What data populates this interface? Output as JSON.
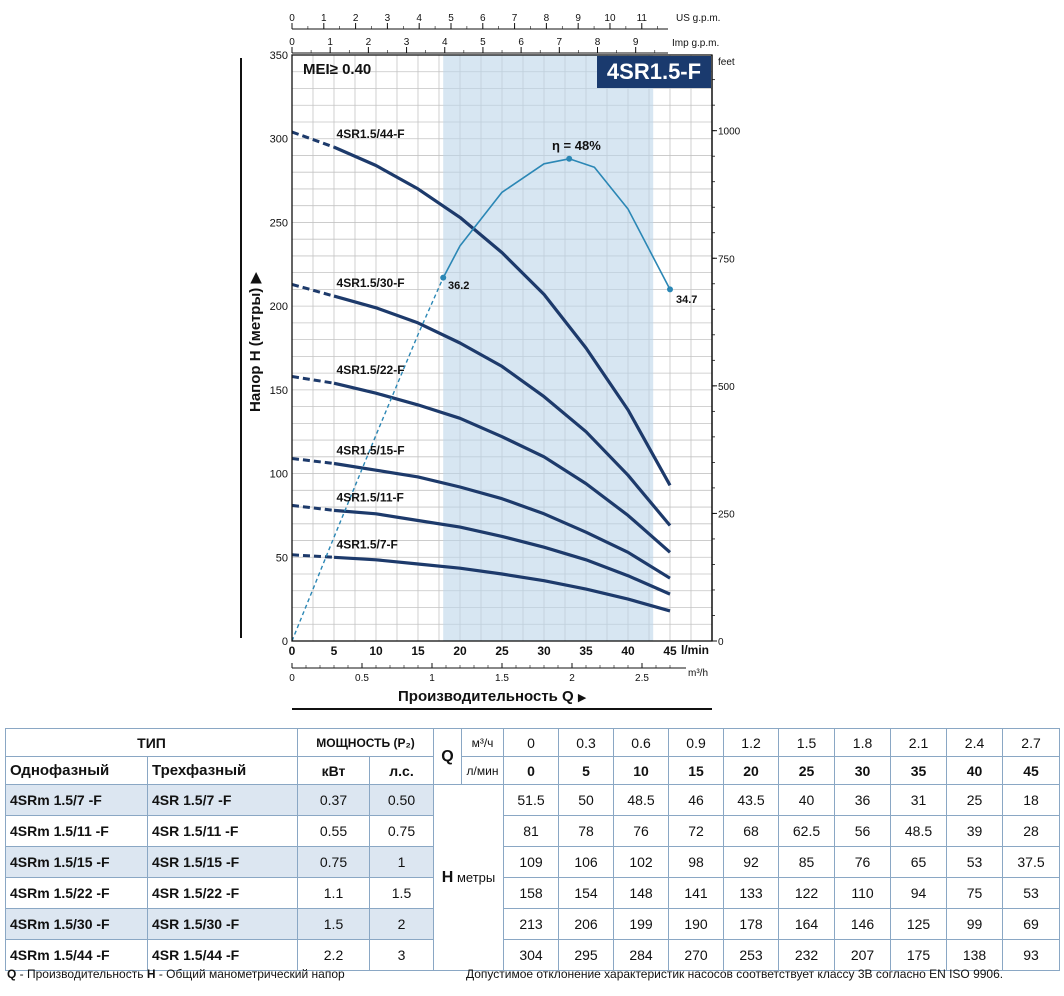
{
  "chart_data": {
    "type": "line",
    "model_title": "4SR1.5-F",
    "mei_label": "MEI≥ 0.40",
    "ylabel": "Напор H (метры)",
    "xlabel": "Производительность Q",
    "x_unit_lmin": "l/min",
    "x_unit_m3h": "m³/h",
    "x_unit_us": "US g.p.m.",
    "x_unit_imp": "Imp g.p.m.",
    "y_unit_feet": "feet",
    "xlim_lmin": [
      0,
      50
    ],
    "ylim_m": [
      0,
      350
    ],
    "x_ticks_lmin": [
      0,
      5,
      10,
      15,
      20,
      25,
      30,
      35,
      40,
      45
    ],
    "y_ticks_m": [
      0,
      50,
      100,
      150,
      200,
      250,
      300,
      350
    ],
    "x_ticks_m3h": [
      0,
      0.5,
      1,
      1.5,
      2,
      2.5
    ],
    "x_ticks_us": [
      0,
      1,
      2,
      3,
      4,
      5,
      6,
      7,
      8,
      9,
      10,
      11
    ],
    "x_ticks_imp": [
      0,
      1,
      2,
      3,
      4,
      5,
      6,
      7,
      8,
      9
    ],
    "y_ticks_feet": [
      0,
      250,
      500,
      750,
      1000
    ],
    "preferred_range_lmin": [
      18,
      43
    ],
    "grid": true,
    "series": [
      {
        "name": "4SR1.5/7-F",
        "x": [
          0,
          5,
          10,
          15,
          20,
          25,
          30,
          35,
          40,
          45
        ],
        "values": [
          51.5,
          50,
          48.5,
          46,
          43.5,
          40,
          36,
          31,
          25,
          18
        ]
      },
      {
        "name": "4SR1.5/11-F",
        "x": [
          0,
          5,
          10,
          15,
          20,
          25,
          30,
          35,
          40,
          45
        ],
        "values": [
          81,
          78,
          76,
          72,
          68,
          62.5,
          56,
          48.5,
          39,
          28
        ]
      },
      {
        "name": "4SR1.5/15-F",
        "x": [
          0,
          5,
          10,
          15,
          20,
          25,
          30,
          35,
          40,
          45
        ],
        "values": [
          109,
          106,
          102,
          98,
          92,
          85,
          76,
          65,
          53,
          37.5
        ]
      },
      {
        "name": "4SR1.5/22-F",
        "x": [
          0,
          5,
          10,
          15,
          20,
          25,
          30,
          35,
          40,
          45
        ],
        "values": [
          158,
          154,
          148,
          141,
          133,
          122,
          110,
          94,
          75,
          53
        ]
      },
      {
        "name": "4SR1.5/30-F",
        "x": [
          0,
          5,
          10,
          15,
          20,
          25,
          30,
          35,
          40,
          45
        ],
        "values": [
          213,
          206,
          199,
          190,
          178,
          164,
          146,
          125,
          99,
          69
        ]
      },
      {
        "name": "4SR1.5/44-F",
        "x": [
          0,
          5,
          10,
          15,
          20,
          25,
          30,
          35,
          40,
          45
        ],
        "values": [
          304,
          295,
          284,
          270,
          253,
          232,
          207,
          175,
          138,
          93
        ]
      }
    ],
    "efficiency": {
      "label": "η = 48%",
      "start_label": "36.2",
      "end_label": "34.7",
      "x": [
        0,
        5,
        10,
        15,
        18,
        20,
        25,
        30,
        33,
        36,
        40,
        45
      ],
      "y": [
        0,
        62,
        123,
        183,
        217,
        236,
        268,
        285,
        288,
        283,
        258,
        210
      ]
    }
  },
  "table": {
    "header_type": "ТИП",
    "header_single": "Однофазный",
    "header_three": "Трехфазный",
    "header_power": "МОЩНОСТЬ (P₂)",
    "header_kw": "кВт",
    "header_hp": "л.с.",
    "q_label": "Q",
    "q_unit_m3h": "м³/ч",
    "q_unit_lmin": "л/мин",
    "q_m3h": [
      "0",
      "0.3",
      "0.6",
      "0.9",
      "1.2",
      "1.5",
      "1.8",
      "2.1",
      "2.4",
      "2.7"
    ],
    "q_lmin": [
      "0",
      "5",
      "10",
      "15",
      "20",
      "25",
      "30",
      "35",
      "40",
      "45"
    ],
    "h_label": "H",
    "h_unit": "метры",
    "rows": [
      {
        "single": "4SRm 1.5/7   -F",
        "three": "4SR 1.5/7   -F",
        "kw": "0.37",
        "hp": "0.50",
        "h": [
          "51.5",
          "50",
          "48.5",
          "46",
          "43.5",
          "40",
          "36",
          "31",
          "25",
          "18"
        ]
      },
      {
        "single": "4SRm 1.5/11 -F",
        "three": "4SR 1.5/11 -F",
        "kw": "0.55",
        "hp": "0.75",
        "h": [
          "81",
          "78",
          "76",
          "72",
          "68",
          "62.5",
          "56",
          "48.5",
          "39",
          "28"
        ]
      },
      {
        "single": "4SRm 1.5/15 -F",
        "three": "4SR 1.5/15 -F",
        "kw": "0.75",
        "hp": "1",
        "h": [
          "109",
          "106",
          "102",
          "98",
          "92",
          "85",
          "76",
          "65",
          "53",
          "37.5"
        ]
      },
      {
        "single": "4SRm 1.5/22 -F",
        "three": "4SR 1.5/22 -F",
        "kw": "1.1",
        "hp": "1.5",
        "h": [
          "158",
          "154",
          "148",
          "141",
          "133",
          "122",
          "110",
          "94",
          "75",
          "53"
        ]
      },
      {
        "single": "4SRm 1.5/30 -F",
        "three": "4SR 1.5/30 -F",
        "kw": "1.5",
        "hp": "2",
        "h": [
          "213",
          "206",
          "199",
          "190",
          "178",
          "164",
          "146",
          "125",
          "99",
          "69"
        ]
      },
      {
        "single": "4SRm 1.5/44 -F",
        "three": "4SR 1.5/44 -F",
        "kw": "2.2",
        "hp": "3",
        "h": [
          "304",
          "295",
          "284",
          "270",
          "253",
          "232",
          "207",
          "175",
          "138",
          "93"
        ]
      }
    ]
  },
  "footer": {
    "left_q": "Q",
    "left_q_text": " - Производительность  ",
    "left_h": "H",
    "left_h_text": " - Общий манометрический напор",
    "right": "Допустимое отклонение характеристик насосов соответствует классу 3B согласно EN ISO 9906."
  }
}
